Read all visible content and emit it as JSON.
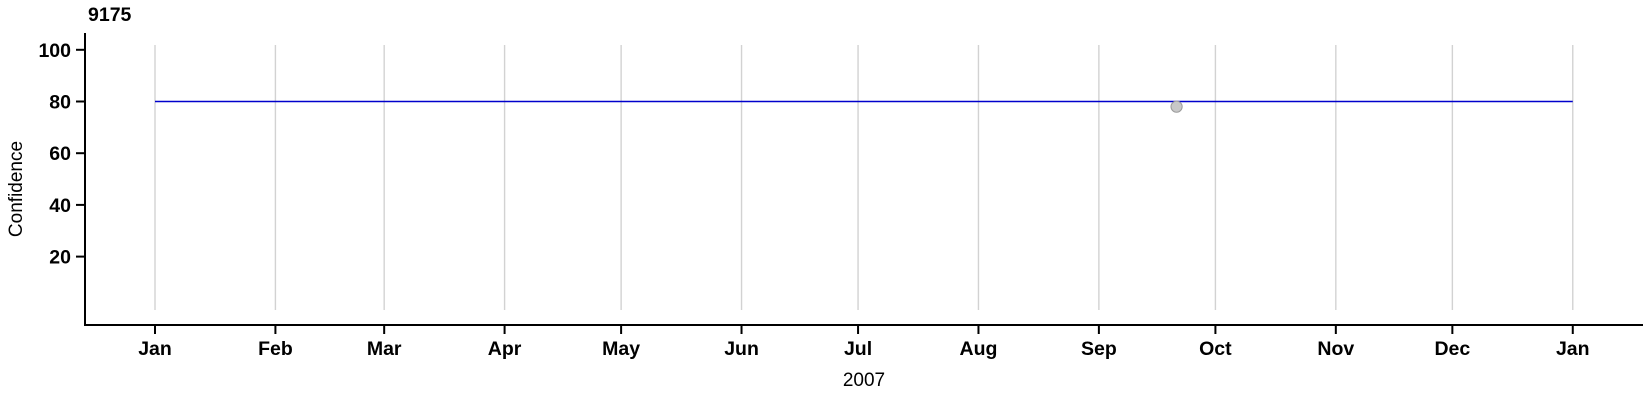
{
  "chart_data": {
    "type": "line",
    "title": "9175",
    "xlabel": "2007",
    "ylabel": "Confidence",
    "x_axis": {
      "unit": "months of 2007 through Jan 2008",
      "tick_labels": [
        "Jan",
        "Feb",
        "Mar",
        "Apr",
        "May",
        "Jun",
        "Jul",
        "Aug",
        "Sep",
        "Oct",
        "Nov",
        "Dec",
        "Jan"
      ],
      "tick_days": [
        0,
        31,
        59,
        90,
        120,
        151,
        181,
        212,
        243,
        273,
        304,
        334,
        365
      ],
      "domain_days": [
        -18,
        383
      ]
    },
    "y_axis": {
      "ticks": [
        20,
        40,
        60,
        80,
        100
      ],
      "domain": [
        -6.5,
        106.5
      ]
    },
    "grid": {
      "vertical": true,
      "horizontal": false,
      "color": "#d2d2d2"
    },
    "legend": null,
    "series": [
      {
        "name": "confidence-line",
        "kind": "hline",
        "y": 80,
        "x_start_day": 0,
        "x_end_day": 365,
        "color": "#0000cc",
        "width": 1.6
      },
      {
        "name": "observation-point",
        "kind": "point",
        "x_day": 263,
        "approx_date": "2007-09-21",
        "y": 78,
        "fill": "#c8c8c8",
        "stroke": "#9a9a9a",
        "radius": 5.6
      }
    ],
    "axis_color": "#000000"
  }
}
